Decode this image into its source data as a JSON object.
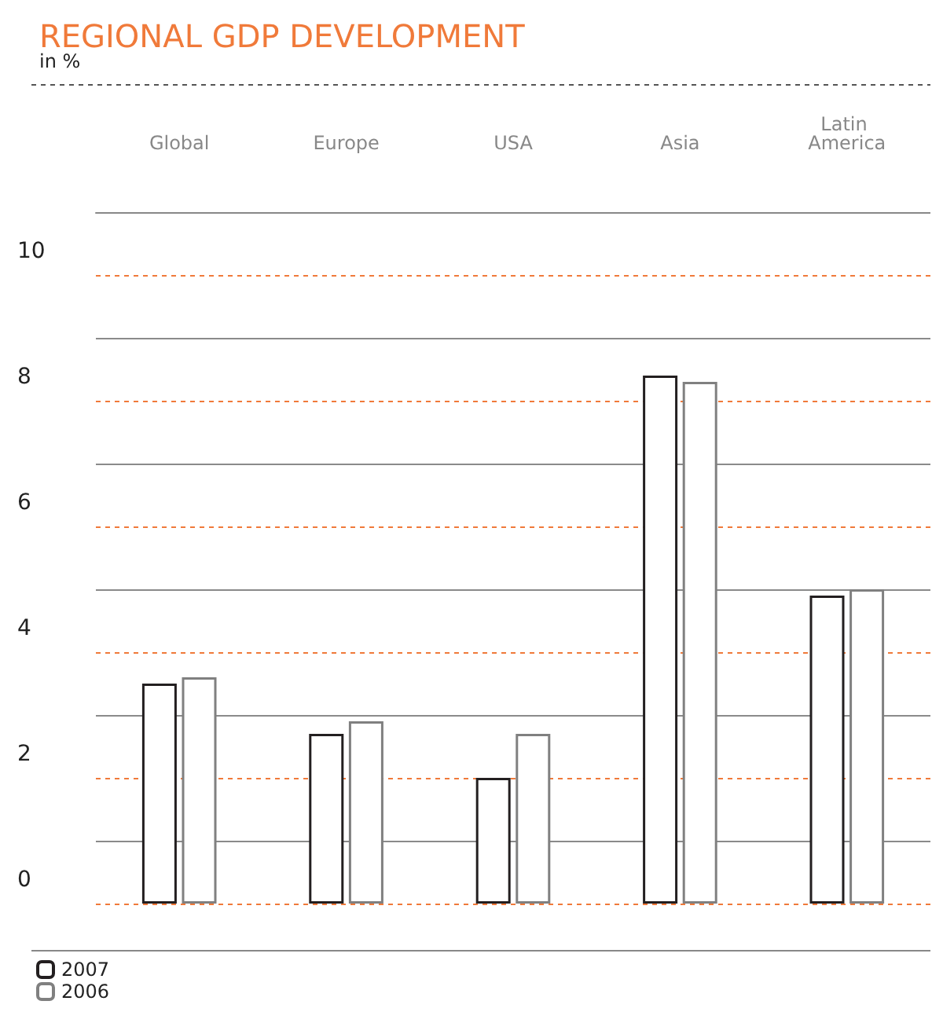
{
  "chart_data": {
    "type": "bar",
    "title": "REGIONAL GDP DEVELOPMENT",
    "subtitle": "in %",
    "categories": [
      "Global",
      "Europe",
      "USA",
      "Asia",
      "Latin America"
    ],
    "series": [
      {
        "name": "2007",
        "color": "#231f20",
        "values": [
          3.5,
          2.7,
          2.0,
          8.4,
          4.9
        ]
      },
      {
        "name": "2006",
        "color": "#808080",
        "values": [
          3.6,
          2.9,
          2.7,
          8.3,
          5.0
        ]
      }
    ],
    "ylim": [
      0,
      11
    ],
    "yticks": [
      0,
      {
        "value": 1,
        "label": null
      },
      2,
      {
        "value": 3,
        "label": null
      },
      4,
      {
        "value": 5,
        "label": null
      },
      6,
      {
        "value": 7,
        "label": null
      },
      8,
      {
        "value": 9,
        "label": null
      },
      10,
      {
        "value": 11,
        "label": null
      }
    ],
    "grid": true,
    "legend": "bottom left"
  }
}
